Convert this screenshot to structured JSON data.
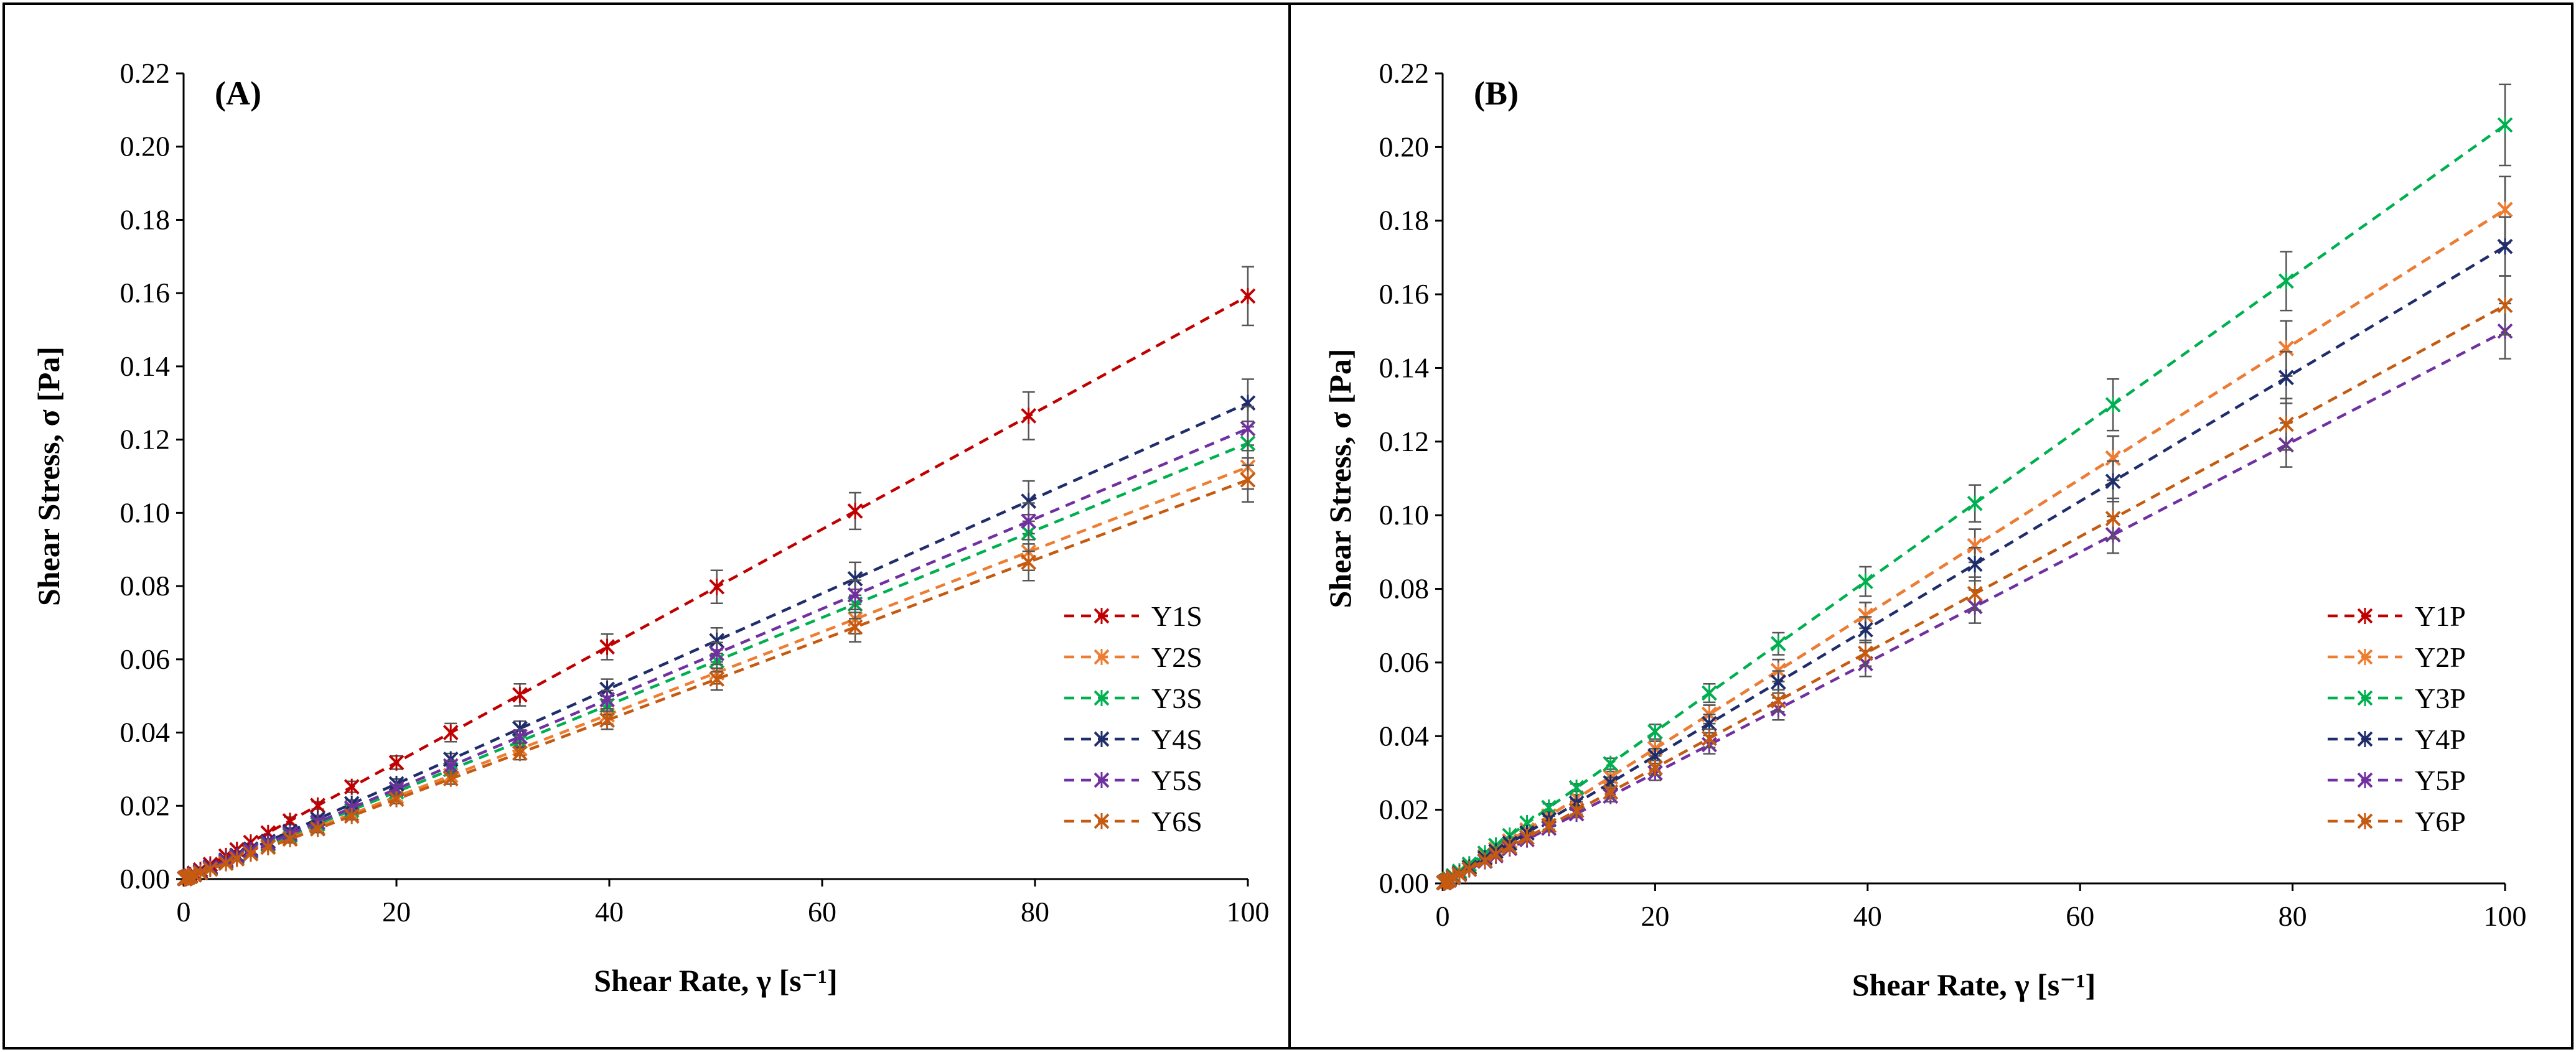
{
  "chart_data": [
    {
      "type": "scatter",
      "panel_label": "(A)",
      "xlabel": "Shear Rate, γ [s⁻¹]",
      "ylabel": "Shear Stress, σ [Pa]",
      "xlim": [
        0,
        100
      ],
      "ylim": [
        0,
        0.22
      ],
      "xticks": [
        "0",
        "20",
        "40",
        "60",
        "80",
        "100"
      ],
      "yticks": [
        "0.00",
        "0.02",
        "0.04",
        "0.06",
        "0.08",
        "0.10",
        "0.12",
        "0.14",
        "0.16",
        "0.18",
        "0.20",
        "0.22"
      ],
      "grid": false,
      "legend_position": "bottom-right",
      "line_style": "dashed",
      "x": [
        0.1,
        0.16,
        0.25,
        0.4,
        0.63,
        1.0,
        1.58,
        2.51,
        3.98,
        5.01,
        6.31,
        7.94,
        10,
        12.6,
        15.8,
        20,
        25.1,
        31.6,
        39.8,
        50.1,
        63.1,
        79.4,
        100
      ],
      "series": [
        {
          "name": "Y1S",
          "color": "#c00000",
          "slope": 0.001592,
          "exponent": 1.0,
          "values": [
            0.0002,
            0.0003,
            0.0004,
            0.0006,
            0.001,
            0.0016,
            0.0025,
            0.004,
            0.0063,
            0.008,
            0.01,
            0.0126,
            0.0159,
            0.0201,
            0.0252,
            0.0318,
            0.04,
            0.0503,
            0.0634,
            0.0798,
            0.1005,
            0.1265,
            0.1592
          ],
          "errors": [
            0,
            0,
            0,
            0,
            0,
            0,
            0,
            0,
            0,
            0,
            0,
            0,
            0.001,
            0.001,
            0.0015,
            0.0018,
            0.0025,
            0.003,
            0.0035,
            0.0045,
            0.005,
            0.0065,
            0.008
          ]
        },
        {
          "name": "Y2S",
          "color": "#ed7d31",
          "slope": 0.001125,
          "exponent": 1.0,
          "values": [
            0.0001,
            0.0002,
            0.0003,
            0.0005,
            0.0007,
            0.0011,
            0.0018,
            0.0028,
            0.0045,
            0.0056,
            0.0071,
            0.0089,
            0.0112,
            0.0141,
            0.0178,
            0.0225,
            0.0283,
            0.0356,
            0.0448,
            0.0563,
            0.071,
            0.0893,
            0.1125
          ],
          "errors": [
            0,
            0,
            0,
            0,
            0,
            0,
            0,
            0,
            0,
            0,
            0,
            0,
            0.001,
            0.001,
            0.001,
            0.0012,
            0.0015,
            0.0018,
            0.0025,
            0.003,
            0.004,
            0.005,
            0.006
          ]
        },
        {
          "name": "Y3S",
          "color": "#00b050",
          "slope": 0.00119,
          "exponent": 1.0,
          "values": [
            0.0001,
            0.0002,
            0.0003,
            0.0005,
            0.0007,
            0.0012,
            0.0019,
            0.003,
            0.0047,
            0.006,
            0.0075,
            0.0094,
            0.0119,
            0.015,
            0.0188,
            0.0238,
            0.0299,
            0.0376,
            0.0474,
            0.0596,
            0.0751,
            0.0945,
            0.119
          ],
          "errors": [
            0,
            0,
            0,
            0,
            0,
            0,
            0,
            0,
            0,
            0,
            0,
            0,
            0.001,
            0.001,
            0.001,
            0.0012,
            0.0015,
            0.0018,
            0.0025,
            0.003,
            0.004,
            0.005,
            0.006
          ]
        },
        {
          "name": "Y4S",
          "color": "#1f2d6b",
          "slope": 0.0013,
          "exponent": 1.0,
          "values": [
            0.0001,
            0.0002,
            0.0003,
            0.0005,
            0.0008,
            0.0013,
            0.0021,
            0.0033,
            0.0052,
            0.0065,
            0.0082,
            0.0103,
            0.013,
            0.0164,
            0.0206,
            0.026,
            0.0327,
            0.0411,
            0.0518,
            0.0651,
            0.082,
            0.1032,
            0.13
          ],
          "errors": [
            0,
            0,
            0,
            0,
            0,
            0,
            0,
            0,
            0,
            0,
            0,
            0,
            0.001,
            0.001,
            0.001,
            0.0013,
            0.0016,
            0.002,
            0.0028,
            0.0035,
            0.0045,
            0.0055,
            0.0065
          ]
        },
        {
          "name": "Y5S",
          "color": "#7030a0",
          "slope": 0.00123,
          "exponent": 1.0,
          "values": [
            0.0001,
            0.0002,
            0.0003,
            0.0005,
            0.0008,
            0.0012,
            0.0019,
            0.0031,
            0.0049,
            0.0062,
            0.0078,
            0.0098,
            0.0123,
            0.0155,
            0.0194,
            0.0246,
            0.0309,
            0.0389,
            0.049,
            0.0616,
            0.0776,
            0.0977,
            0.123
          ],
          "errors": [
            0,
            0,
            0,
            0,
            0,
            0,
            0,
            0,
            0,
            0,
            0,
            0,
            0.001,
            0.001,
            0.001,
            0.0012,
            0.0015,
            0.0018,
            0.0025,
            0.003,
            0.004,
            0.005,
            0.006
          ]
        },
        {
          "name": "Y6S",
          "color": "#c55a11",
          "slope": 0.00109,
          "exponent": 1.0,
          "values": [
            0.0001,
            0.0002,
            0.0003,
            0.0004,
            0.0007,
            0.0011,
            0.0017,
            0.0027,
            0.0043,
            0.0055,
            0.0069,
            0.0087,
            0.0109,
            0.0137,
            0.0172,
            0.0218,
            0.0274,
            0.0344,
            0.0434,
            0.0546,
            0.0688,
            0.0865,
            0.109
          ],
          "errors": [
            0,
            0,
            0,
            0,
            0,
            0,
            0,
            0,
            0,
            0,
            0,
            0,
            0.001,
            0.001,
            0.001,
            0.0012,
            0.0015,
            0.0018,
            0.0025,
            0.003,
            0.004,
            0.005,
            0.006
          ]
        }
      ]
    },
    {
      "type": "scatter",
      "panel_label": "(B)",
      "xlabel": "Shear Rate, γ [s⁻¹]",
      "ylabel": "Shear Stress, σ [Pa]",
      "xlim": [
        0,
        100
      ],
      "ylim": [
        0,
        0.22
      ],
      "xticks": [
        "0",
        "20",
        "40",
        "60",
        "80",
        "100"
      ],
      "yticks": [
        "0.00",
        "0.02",
        "0.04",
        "0.06",
        "0.08",
        "0.10",
        "0.12",
        "0.14",
        "0.16",
        "0.18",
        "0.20",
        "0.22"
      ],
      "grid": false,
      "legend_position": "bottom-right",
      "line_style": "dashed",
      "x": [
        0.1,
        0.16,
        0.25,
        0.4,
        0.63,
        1.0,
        1.58,
        2.51,
        3.98,
        5.01,
        6.31,
        7.94,
        10,
        12.6,
        15.8,
        20,
        25.1,
        31.6,
        39.8,
        50.1,
        63.1,
        79.4,
        100
      ],
      "series": [
        {
          "name": "Y1P",
          "color": "#c00000",
          "slope": 0.00183,
          "exponent": 1.0,
          "values": [
            0.0002,
            0.0003,
            0.0005,
            0.0007,
            0.0012,
            0.0018,
            0.0029,
            0.0046,
            0.0073,
            0.0092,
            0.0115,
            0.0145,
            0.0183,
            0.0231,
            0.0289,
            0.0366,
            0.0459,
            0.0578,
            0.0728,
            0.0917,
            0.1155,
            0.1453,
            0.183
          ],
          "errors": [
            0,
            0,
            0,
            0,
            0,
            0,
            0,
            0,
            0,
            0,
            0,
            0,
            0.001,
            0.001,
            0.0015,
            0.002,
            0.0025,
            0.003,
            0.0035,
            0.0045,
            0.006,
            0.0075,
            0.009
          ]
        },
        {
          "name": "Y2P",
          "color": "#ed7d31",
          "slope": 0.00183,
          "exponent": 1.0,
          "values": [
            0.0002,
            0.0003,
            0.0005,
            0.0007,
            0.0012,
            0.0018,
            0.0029,
            0.0046,
            0.0073,
            0.0092,
            0.0115,
            0.0145,
            0.0183,
            0.0231,
            0.0289,
            0.0366,
            0.0459,
            0.0578,
            0.0728,
            0.0917,
            0.1155,
            0.1453,
            0.183
          ],
          "errors": [
            0,
            0,
            0,
            0,
            0,
            0,
            0,
            0,
            0,
            0,
            0,
            0,
            0.001,
            0.001,
            0.0015,
            0.002,
            0.0025,
            0.003,
            0.0035,
            0.0045,
            0.006,
            0.0075,
            0.009
          ]
        },
        {
          "name": "Y3P",
          "color": "#00b050",
          "slope": 0.00206,
          "exponent": 1.0,
          "values": [
            0.0002,
            0.0003,
            0.0005,
            0.0008,
            0.0013,
            0.0021,
            0.0033,
            0.0052,
            0.0082,
            0.0103,
            0.013,
            0.0164,
            0.0206,
            0.026,
            0.0325,
            0.0412,
            0.0517,
            0.0651,
            0.082,
            0.1032,
            0.13,
            0.1636,
            0.206
          ],
          "errors": [
            0,
            0,
            0,
            0,
            0,
            0,
            0,
            0,
            0,
            0,
            0,
            0,
            0.001,
            0.001,
            0.0015,
            0.002,
            0.0025,
            0.003,
            0.004,
            0.005,
            0.007,
            0.008,
            0.011
          ]
        },
        {
          "name": "Y4P",
          "color": "#1f2d6b",
          "slope": 0.00173,
          "exponent": 1.0,
          "values": [
            0.0002,
            0.0003,
            0.0004,
            0.0007,
            0.0011,
            0.0017,
            0.0027,
            0.0043,
            0.0069,
            0.0087,
            0.0109,
            0.0137,
            0.0173,
            0.0218,
            0.0273,
            0.0346,
            0.0434,
            0.0547,
            0.0689,
            0.0867,
            0.1092,
            0.1374,
            0.173
          ],
          "errors": [
            0,
            0,
            0,
            0,
            0,
            0,
            0,
            0,
            0,
            0,
            0,
            0,
            0.001,
            0.001,
            0.0015,
            0.002,
            0.0025,
            0.003,
            0.0035,
            0.0045,
            0.0055,
            0.007,
            0.008
          ]
        },
        {
          "name": "Y5P",
          "color": "#7030a0",
          "slope": 0.0015,
          "exponent": 1.0,
          "values": [
            0.0002,
            0.0002,
            0.0004,
            0.0006,
            0.0009,
            0.0015,
            0.0024,
            0.0038,
            0.006,
            0.0075,
            0.0095,
            0.0119,
            0.015,
            0.0189,
            0.0237,
            0.03,
            0.0377,
            0.0474,
            0.0597,
            0.0752,
            0.0947,
            0.1191,
            0.15
          ],
          "errors": [
            0,
            0,
            0,
            0,
            0,
            0,
            0,
            0,
            0,
            0,
            0,
            0,
            0.001,
            0.001,
            0.0015,
            0.002,
            0.0025,
            0.003,
            0.0035,
            0.0045,
            0.005,
            0.006,
            0.0075
          ]
        },
        {
          "name": "Y6P",
          "color": "#c55a11",
          "slope": 0.00157,
          "exponent": 1.0,
          "values": [
            0.0002,
            0.0003,
            0.0004,
            0.0006,
            0.001,
            0.0016,
            0.0025,
            0.0039,
            0.0062,
            0.0079,
            0.0099,
            0.0125,
            0.0157,
            0.0198,
            0.0248,
            0.0314,
            0.0394,
            0.0496,
            0.0625,
            0.0787,
            0.0991,
            0.1247,
            0.157
          ],
          "errors": [
            0,
            0,
            0,
            0,
            0,
            0,
            0,
            0,
            0,
            0,
            0,
            0,
            0.001,
            0.001,
            0.0015,
            0.002,
            0.0025,
            0.003,
            0.0035,
            0.0045,
            0.0055,
            0.007,
            0.008
          ]
        }
      ]
    }
  ]
}
